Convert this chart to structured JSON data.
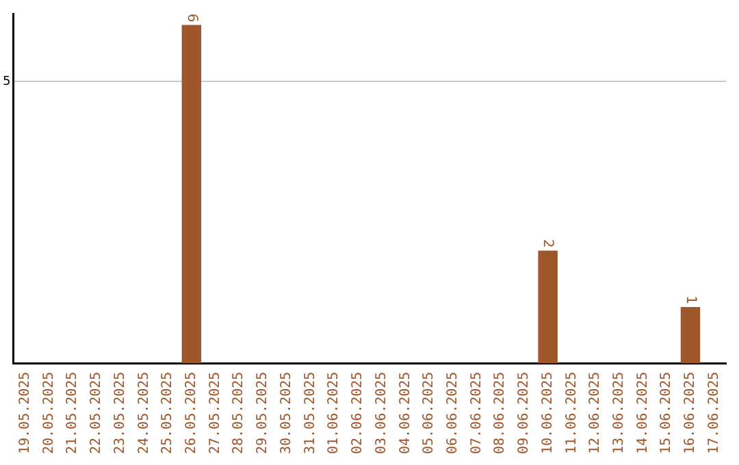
{
  "chart_data": {
    "type": "bar",
    "categories": [
      "19.05.2025",
      "20.05.2025",
      "21.05.2025",
      "22.05.2025",
      "23.05.2025",
      "24.05.2025",
      "25.05.2025",
      "26.05.2025",
      "27.05.2025",
      "28.05.2025",
      "29.05.2025",
      "30.05.2025",
      "31.05.2025",
      "01.06.2025",
      "02.06.2025",
      "03.06.2025",
      "04.06.2025",
      "05.06.2025",
      "06.06.2025",
      "07.06.2025",
      "08.06.2025",
      "09.06.2025",
      "10.06.2025",
      "11.06.2025",
      "12.06.2025",
      "13.06.2025",
      "14.06.2025",
      "15.06.2025",
      "16.06.2025",
      "17.06.2025"
    ],
    "values": [
      0,
      0,
      0,
      0,
      0,
      0,
      0,
      6,
      0,
      0,
      0,
      0,
      0,
      0,
      0,
      0,
      0,
      0,
      0,
      0,
      0,
      0,
      2,
      0,
      0,
      0,
      0,
      0,
      1,
      0
    ],
    "value_labels": [
      null,
      null,
      null,
      null,
      null,
      null,
      null,
      "6",
      null,
      null,
      null,
      null,
      null,
      null,
      null,
      null,
      null,
      null,
      null,
      null,
      null,
      null,
      "2",
      null,
      null,
      null,
      null,
      null,
      "1",
      null
    ],
    "color": "#a0562b",
    "ylim": [
      0,
      6.2
    ],
    "yticks": [
      5
    ],
    "grid": "y",
    "legend": false
  }
}
